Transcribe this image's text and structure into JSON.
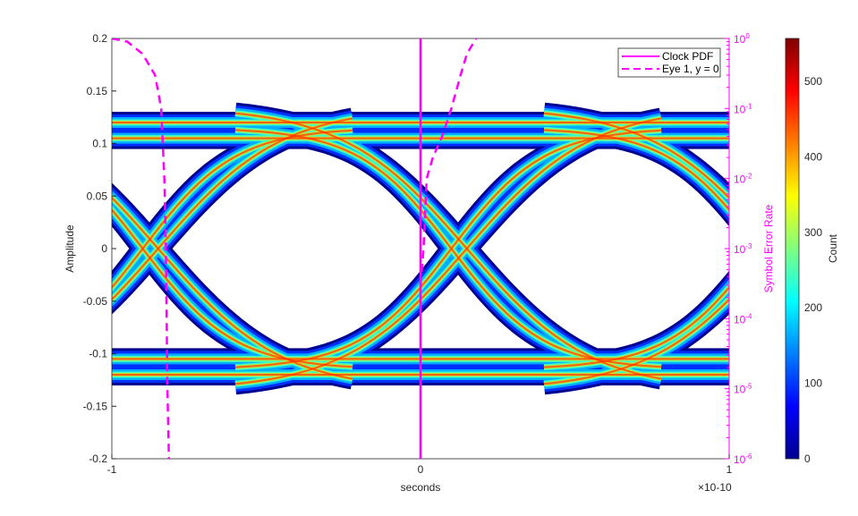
{
  "chart_data": {
    "type": "heatmap",
    "xlabel": "seconds",
    "x_exponent": "×10-10",
    "ylabel": "Amplitude",
    "y2label": "Symbol Error Rate",
    "colorbar_label": "Count",
    "xlim": [
      -1,
      1
    ],
    "ylim": [
      -0.2,
      0.2
    ],
    "y2lim": [
      1e-06,
      1
    ],
    "y2scale": "log",
    "clim": [
      0,
      557
    ],
    "colormap": "jet",
    "xticks": [
      "-1",
      "0",
      "1"
    ],
    "yticks": [
      "-0.2",
      "-0.15",
      "-0.1",
      "-0.05",
      "0",
      "0.05",
      "0.1",
      "0.15",
      "0.2"
    ],
    "y2ticks": [
      "10",
      "10",
      "10",
      "10",
      "10",
      "10",
      "10"
    ],
    "y2tick_exponents": [
      "-6",
      "-5",
      "-4",
      "-3",
      "-2",
      "-1",
      "0"
    ],
    "cticks": [
      "0",
      "100",
      "200",
      "300",
      "400",
      "500"
    ],
    "eye": {
      "levels": [
        -0.1,
        0.1
      ],
      "crossings_x": [
        -0.9,
        0.1
      ],
      "upper_crossings": [
        [
          -0.45,
          0.095
        ],
        [
          0.55,
          0.095
        ]
      ],
      "lower_crossings": [
        [
          -0.45,
          -0.095
        ],
        [
          0.55,
          -0.095
        ]
      ]
    },
    "series": [
      {
        "name": "Clock PDF",
        "style": "solid",
        "color": "#ff00ff",
        "x": [
          0,
          0
        ],
        "y": [
          1e-06,
          1
        ]
      },
      {
        "name": "Eye 1, y = 0",
        "style": "dashed",
        "color": "#ff00ff",
        "segments": [
          {
            "x": [
              -1,
              -0.95,
              -0.9,
              -0.86,
              -0.84,
              -0.83,
              -0.825,
              -0.82,
              -0.815
            ],
            "y": [
              1,
              0.9,
              0.6,
              0.3,
              0.1,
              0.01,
              0.001,
              1e-05,
              1e-06
            ]
          },
          {
            "x": [
              0.0,
              0.01,
              0.02,
              0.04,
              0.07,
              0.1,
              0.13,
              0.15,
              0.18
            ],
            "y": [
              0.0003,
              0.001,
              0.01,
              0.02,
              0.04,
              0.1,
              0.3,
              0.6,
              1
            ]
          }
        ]
      }
    ],
    "legend": {
      "placement": "top-right",
      "entries": [
        "Clock PDF",
        "Eye 1, y = 0"
      ]
    }
  }
}
